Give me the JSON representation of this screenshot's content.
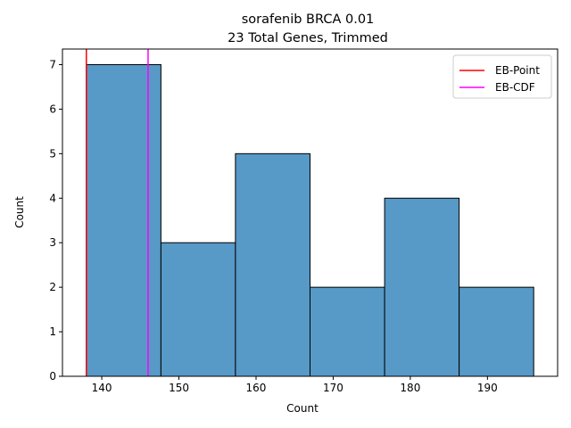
{
  "chart_data": {
    "type": "bar",
    "title": "sorafenib BRCA 0.01",
    "subtitle": "23 Total Genes, Trimmed",
    "xlabel": "Count",
    "ylabel": "Count",
    "xlim": [
      134.9,
      199.1
    ],
    "ylim": [
      0,
      7.35
    ],
    "xticks": [
      140,
      150,
      160,
      170,
      180,
      190
    ],
    "yticks": [
      0,
      1,
      2,
      3,
      4,
      5,
      6,
      7
    ],
    "bins": [
      {
        "start": 138.0,
        "end": 147.67,
        "count": 7
      },
      {
        "start": 147.67,
        "end": 157.33,
        "count": 3
      },
      {
        "start": 157.33,
        "end": 167.0,
        "count": 5
      },
      {
        "start": 167.0,
        "end": 176.67,
        "count": 2
      },
      {
        "start": 176.67,
        "end": 186.33,
        "count": 4
      },
      {
        "start": 186.33,
        "end": 196.0,
        "count": 2
      }
    ],
    "bar_color": "#5799c7",
    "vlines": [
      {
        "name": "EB-Point",
        "x": 138.0,
        "color": "#ff0000"
      },
      {
        "name": "EB-CDF",
        "x": 146.0,
        "color": "#ff00ff"
      }
    ],
    "grid": false,
    "legend_position": "top-right"
  }
}
